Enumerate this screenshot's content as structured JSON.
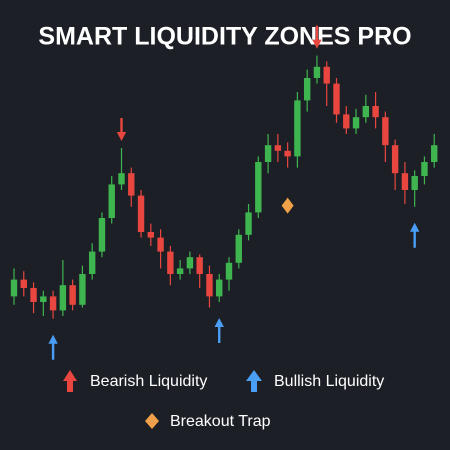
{
  "chart_data": {
    "type": "candlestick",
    "title": "SMART LIQUIDITY ZONES PRO",
    "ylim": [
      0,
      100
    ],
    "open": [
      12,
      18,
      15,
      10,
      12,
      7,
      16,
      9,
      20,
      28,
      40,
      52,
      56,
      48,
      35,
      33,
      28,
      20,
      22,
      26,
      20,
      12,
      18,
      24,
      34,
      42,
      60,
      66,
      64,
      62,
      82,
      90,
      94,
      88,
      77,
      72,
      76,
      80,
      76,
      66,
      56,
      50,
      55,
      60
    ],
    "high": [
      22,
      21,
      17,
      14,
      14,
      25,
      18,
      23,
      31,
      42,
      55,
      65,
      58,
      50,
      38,
      36,
      30,
      25,
      28,
      27,
      23,
      20,
      26,
      36,
      45,
      62,
      70,
      70,
      67,
      85,
      93,
      98,
      96,
      90,
      80,
      79,
      84,
      85,
      78,
      68,
      60,
      57,
      62,
      70
    ],
    "low": [
      9,
      12,
      6,
      5,
      4,
      5,
      7,
      8,
      18,
      26,
      38,
      50,
      44,
      33,
      30,
      22,
      16,
      18,
      20,
      15,
      8,
      10,
      14,
      22,
      32,
      40,
      56,
      60,
      58,
      58,
      78,
      88,
      80,
      74,
      70,
      70,
      74,
      72,
      60,
      50,
      45,
      44,
      52,
      58
    ],
    "close": [
      18,
      15,
      10,
      12,
      7,
      16,
      9,
      20,
      28,
      40,
      52,
      56,
      48,
      35,
      33,
      28,
      20,
      22,
      26,
      20,
      12,
      18,
      24,
      34,
      42,
      60,
      66,
      64,
      62,
      82,
      90,
      94,
      88,
      77,
      72,
      76,
      80,
      76,
      66,
      56,
      50,
      55,
      60,
      66
    ],
    "up_color": "#3fb54f",
    "down_color": "#e8463f",
    "markers": {
      "bearish": [
        11,
        31
      ],
      "bullish": [
        4,
        21,
        41
      ],
      "trap": [
        28
      ]
    },
    "legend": {
      "bearish": "Bearish Liquidity",
      "bullish": "Bullish Liquidity",
      "trap": "Breakout Trap"
    },
    "marker_colors": {
      "bearish": "#e8463f",
      "bullish": "#4a9ef5",
      "trap": "#f0a048"
    }
  }
}
